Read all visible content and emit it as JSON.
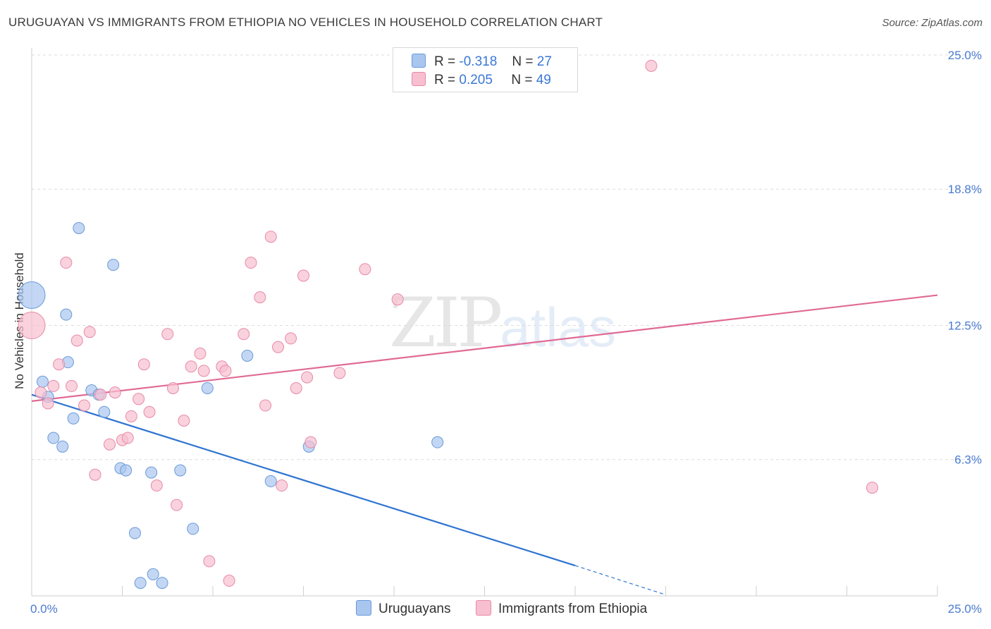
{
  "header": {
    "title": "URUGUAYAN VS IMMIGRANTS FROM ETHIOPIA NO VEHICLES IN HOUSEHOLD CORRELATION CHART",
    "source": "Source: ZipAtlas.com"
  },
  "watermark": {
    "zip": "ZIP",
    "atlas": "atlas"
  },
  "legend": {
    "rows": [
      {
        "r_label": "R =",
        "r_value": "-0.318",
        "n_label": "N =",
        "n_value": "27",
        "color": "#a9c6ef",
        "border": "#6a9ad8"
      },
      {
        "r_label": "R =",
        "r_value": "0.205",
        "n_label": "N =",
        "n_value": "49",
        "color": "#f7bfd0",
        "border": "#e889a8"
      }
    ]
  },
  "bottom_legend": {
    "items": [
      "Uruguayans",
      "Immigrants from Ethiopia"
    ]
  },
  "chart_data": {
    "type": "scatter",
    "title": "URUGUAYAN VS IMMIGRANTS FROM ETHIOPIA NO VEHICLES IN HOUSEHOLD CORRELATION CHART",
    "xlabel": "",
    "ylabel": "No Vehicles in Household",
    "xlim": [
      0,
      25
    ],
    "ylim": [
      0,
      25
    ],
    "x_tick_labels": [
      "0.0%",
      "25.0%"
    ],
    "y_ticks": [
      6.3,
      12.5,
      18.8,
      25.0
    ],
    "y_tick_labels": [
      "6.3%",
      "12.5%",
      "18.8%",
      "25.0%"
    ],
    "grid": true,
    "series": [
      {
        "name": "Uruguayans",
        "color": "#a9c6ef",
        "stroke": "#6a9ad8",
        "line_color": "#2f74d0",
        "trend": {
          "x0": 0.0,
          "y0": 9.3,
          "x1": 15.0,
          "y1": 1.4,
          "dash_to_x": 17.5,
          "dash_to_y": 0.05
        },
        "points": [
          {
            "x": 0.0,
            "y": 13.9,
            "size": "large"
          },
          {
            "x": 0.3,
            "y": 9.9
          },
          {
            "x": 0.45,
            "y": 9.2
          },
          {
            "x": 0.6,
            "y": 7.3
          },
          {
            "x": 0.85,
            "y": 6.9
          },
          {
            "x": 0.95,
            "y": 13.0
          },
          {
            "x": 1.0,
            "y": 10.8
          },
          {
            "x": 1.15,
            "y": 8.2
          },
          {
            "x": 1.3,
            "y": 17.0
          },
          {
            "x": 1.65,
            "y": 9.5
          },
          {
            "x": 1.85,
            "y": 9.3
          },
          {
            "x": 2.0,
            "y": 8.5
          },
          {
            "x": 2.25,
            "y": 15.3
          },
          {
            "x": 2.45,
            "y": 5.9
          },
          {
            "x": 2.6,
            "y": 5.8
          },
          {
            "x": 2.85,
            "y": 2.9
          },
          {
            "x": 3.0,
            "y": 0.6
          },
          {
            "x": 3.3,
            "y": 5.7
          },
          {
            "x": 3.35,
            "y": 1.0
          },
          {
            "x": 3.6,
            "y": 0.6
          },
          {
            "x": 4.1,
            "y": 5.8
          },
          {
            "x": 4.45,
            "y": 3.1
          },
          {
            "x": 4.85,
            "y": 9.6
          },
          {
            "x": 5.95,
            "y": 11.1
          },
          {
            "x": 6.6,
            "y": 5.3
          },
          {
            "x": 7.65,
            "y": 6.9
          },
          {
            "x": 11.2,
            "y": 7.1
          }
        ]
      },
      {
        "name": "Immigrants from Ethiopia",
        "color": "#f7bfd0",
        "stroke": "#e889a8",
        "line_color": "#e06a95",
        "trend": {
          "x0": 0.0,
          "y0": 9.0,
          "x1": 25.0,
          "y1": 13.9
        },
        "points": [
          {
            "x": 0.0,
            "y": 12.5,
            "size": "large"
          },
          {
            "x": 0.25,
            "y": 9.4
          },
          {
            "x": 0.45,
            "y": 8.9
          },
          {
            "x": 0.6,
            "y": 9.7
          },
          {
            "x": 0.75,
            "y": 10.7
          },
          {
            "x": 0.95,
            "y": 15.4
          },
          {
            "x": 1.1,
            "y": 9.7
          },
          {
            "x": 1.25,
            "y": 11.8
          },
          {
            "x": 1.45,
            "y": 8.8
          },
          {
            "x": 1.6,
            "y": 12.2
          },
          {
            "x": 1.75,
            "y": 5.6
          },
          {
            "x": 1.9,
            "y": 9.3
          },
          {
            "x": 2.15,
            "y": 7.0
          },
          {
            "x": 2.3,
            "y": 9.4
          },
          {
            "x": 2.5,
            "y": 7.2
          },
          {
            "x": 2.65,
            "y": 7.3
          },
          {
            "x": 2.75,
            "y": 8.3
          },
          {
            "x": 2.95,
            "y": 9.1
          },
          {
            "x": 3.1,
            "y": 10.7
          },
          {
            "x": 3.25,
            "y": 8.5
          },
          {
            "x": 3.45,
            "y": 5.1
          },
          {
            "x": 3.75,
            "y": 12.1
          },
          {
            "x": 3.9,
            "y": 9.6
          },
          {
            "x": 4.0,
            "y": 4.2
          },
          {
            "x": 4.2,
            "y": 8.1
          },
          {
            "x": 4.4,
            "y": 10.6
          },
          {
            "x": 4.65,
            "y": 11.2
          },
          {
            "x": 4.75,
            "y": 10.4
          },
          {
            "x": 4.9,
            "y": 1.6
          },
          {
            "x": 5.25,
            "y": 10.6
          },
          {
            "x": 5.35,
            "y": 10.4
          },
          {
            "x": 5.45,
            "y": 0.7
          },
          {
            "x": 5.85,
            "y": 12.1
          },
          {
            "x": 6.05,
            "y": 15.4
          },
          {
            "x": 6.3,
            "y": 13.8
          },
          {
            "x": 6.45,
            "y": 8.8
          },
          {
            "x": 6.6,
            "y": 16.6
          },
          {
            "x": 6.8,
            "y": 11.5
          },
          {
            "x": 6.9,
            "y": 5.1
          },
          {
            "x": 7.15,
            "y": 11.9
          },
          {
            "x": 7.3,
            "y": 9.6
          },
          {
            "x": 7.5,
            "y": 14.8
          },
          {
            "x": 7.6,
            "y": 10.1
          },
          {
            "x": 7.7,
            "y": 7.1
          },
          {
            "x": 8.5,
            "y": 10.3
          },
          {
            "x": 9.2,
            "y": 15.1
          },
          {
            "x": 10.1,
            "y": 13.7
          },
          {
            "x": 17.1,
            "y": 24.5
          },
          {
            "x": 23.2,
            "y": 5.0
          }
        ]
      }
    ]
  }
}
